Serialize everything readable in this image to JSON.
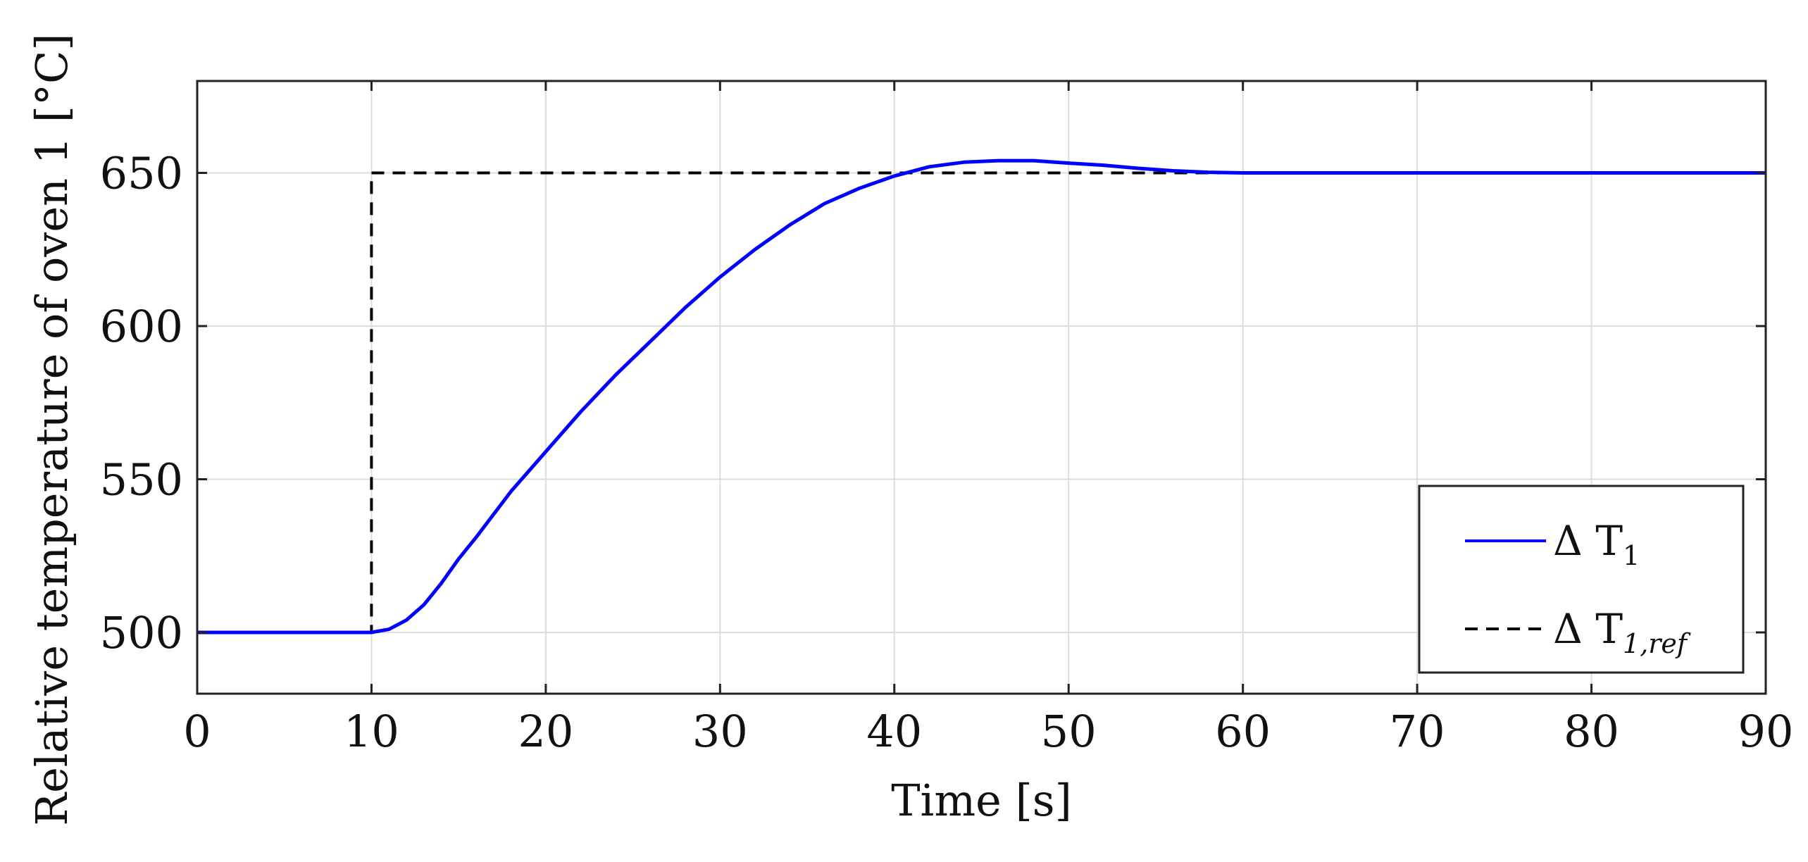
{
  "chart_data": {
    "type": "line",
    "xlabel": "Time [s]",
    "ylabel": "Relative temperature of oven 1 [°C]",
    "xlim": [
      0,
      90
    ],
    "ylim": [
      480,
      680
    ],
    "xticks": [
      0,
      10,
      20,
      30,
      40,
      50,
      60,
      70,
      80,
      90
    ],
    "yticks": [
      500,
      550,
      600,
      650
    ],
    "grid": true,
    "legend_position": "bottom-right",
    "series": [
      {
        "name": "ΔT1",
        "legend_main": "Δ T",
        "legend_sub": "1",
        "style": "solid",
        "color": "#0000ff",
        "x": [
          0,
          10,
          11,
          12,
          13,
          14,
          15,
          16,
          18,
          20,
          22,
          24,
          26,
          28,
          30,
          32,
          34,
          36,
          38,
          40,
          42,
          44,
          46,
          47,
          48,
          50,
          52,
          54,
          56,
          58,
          60,
          65,
          70,
          80,
          90
        ],
        "y": [
          500,
          500,
          501,
          504,
          509,
          516,
          524,
          531,
          546,
          559,
          572,
          584,
          595,
          606,
          616,
          625,
          633,
          640,
          645,
          649,
          652,
          653.5,
          654,
          654,
          654,
          653.2,
          652.5,
          651.5,
          650.7,
          650.2,
          650,
          650,
          650,
          650,
          650
        ]
      },
      {
        "name": "ΔT1,ref",
        "legend_main": "Δ T",
        "legend_sub": "1,ref",
        "style": "dashed",
        "color": "#000000",
        "x": [
          0,
          10,
          10,
          90
        ],
        "y": [
          500,
          500,
          650,
          650
        ]
      }
    ]
  }
}
